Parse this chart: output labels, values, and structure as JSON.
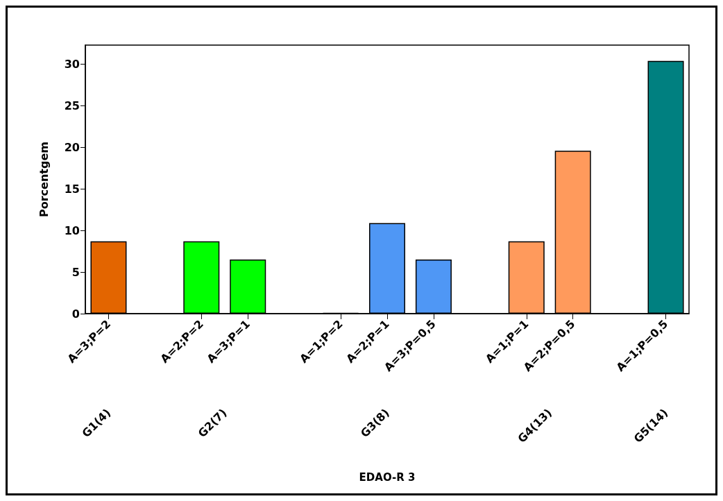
{
  "chart_data": {
    "type": "bar",
    "ylabel": "Porcentgem",
    "categories": [
      "A=3;P=2",
      null,
      "A=2;P=2",
      "A=3;P=1",
      null,
      "A=1;P=2",
      "A=2;P=1",
      "A=3;P=0,5",
      null,
      "A=1;P=1",
      "A=2;P=0,5",
      null,
      "A=1;P=0,5"
    ],
    "series": [
      {
        "color": "#e36500",
        "values": [
          8.7,
          null,
          null,
          null,
          null,
          null,
          null,
          null,
          null,
          null,
          null,
          null,
          null
        ]
      },
      {
        "color": "#00ff00",
        "values": [
          null,
          null,
          8.7,
          6.5,
          null,
          null,
          null,
          null,
          null,
          null,
          null,
          null,
          null
        ]
      },
      {
        "color": "#4f97f5",
        "values": [
          null,
          null,
          null,
          null,
          null,
          0,
          10.9,
          6.5,
          null,
          null,
          null,
          null,
          null
        ]
      },
      {
        "color": "#ff9a5c",
        "values": [
          null,
          null,
          null,
          null,
          null,
          null,
          null,
          null,
          null,
          8.7,
          19.6,
          null,
          null
        ]
      },
      {
        "color": "#008080",
        "values": [
          null,
          null,
          null,
          null,
          null,
          null,
          null,
          null,
          null,
          null,
          null,
          null,
          30.4
        ]
      }
    ],
    "annotations": [
      "G1(4)",
      "G2(7)",
      "G3(8)",
      "G4(13)",
      "G5(14)",
      "EDAO-R 3"
    ],
    "ylim": [
      0,
      32.3
    ],
    "yticks": [
      0,
      5,
      10,
      15,
      20,
      25,
      30
    ],
    "grid": false
  }
}
